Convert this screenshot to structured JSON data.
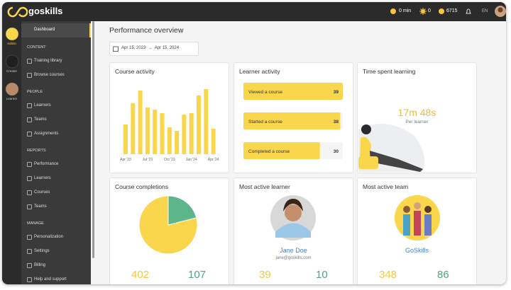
{
  "header": {
    "logo": "goskills",
    "time": "0 min",
    "streak": "0",
    "points": "6715",
    "language": "EN"
  },
  "rail": [
    {
      "label": "Admin"
    },
    {
      "label": "Creator"
    },
    {
      "label": "Learner"
    }
  ],
  "sidebar": {
    "active": "Dashboard",
    "sections": [
      {
        "title": "CONTENT",
        "items": [
          "Training library",
          "Browse courses"
        ]
      },
      {
        "title": "PEOPLE",
        "items": [
          "Learners",
          "Teams",
          "Assignments"
        ]
      },
      {
        "title": "REPORTS",
        "items": [
          "Performance",
          "Learners",
          "Courses",
          "Teams"
        ]
      },
      {
        "title": "MANAGE",
        "items": [
          "Personalization",
          "Settings",
          "Billing",
          "Help and support"
        ]
      }
    ]
  },
  "main": {
    "title": "Performance overview",
    "date_range": "Apr 15, 2023  →  Apr 15, 2024"
  },
  "cards": {
    "course_activity": {
      "title": "Course activity",
      "type": "bar",
      "color": "#f9d64c",
      "categories": [
        "Apr '23",
        null,
        null,
        "Jul '23",
        null,
        null,
        "Oct '23",
        null,
        null,
        "Jan '24",
        null,
        null,
        "Apr '24"
      ],
      "values": [
        42,
        72,
        90,
        66,
        63,
        58,
        38,
        33,
        56,
        58,
        83,
        92,
        36
      ],
      "ylim": [
        0,
        100
      ]
    },
    "learner_activity": {
      "title": "Learner activity",
      "type": "bar",
      "color": "#f9d64c",
      "categories": [
        "Viewed a course",
        "Started a course",
        "Completed a course"
      ],
      "values": [
        39,
        38,
        30
      ]
    },
    "time_spent": {
      "title": "Time spent learning",
      "value": "17m 48s",
      "caption": "Per learner"
    },
    "course_completions": {
      "title": "Course completions",
      "type": "pie",
      "values": [
        402,
        107
      ],
      "colors": [
        "#f9d64c",
        "#5db58a"
      ]
    },
    "most_active_learner": {
      "title": "Most active learner",
      "name": "Jane Doe",
      "email": "jane@goskills.com",
      "stats": [
        "39",
        "10"
      ]
    },
    "most_active_team": {
      "title": "Most active team",
      "name": "GoSkills",
      "stats": [
        "348",
        "86"
      ]
    }
  }
}
